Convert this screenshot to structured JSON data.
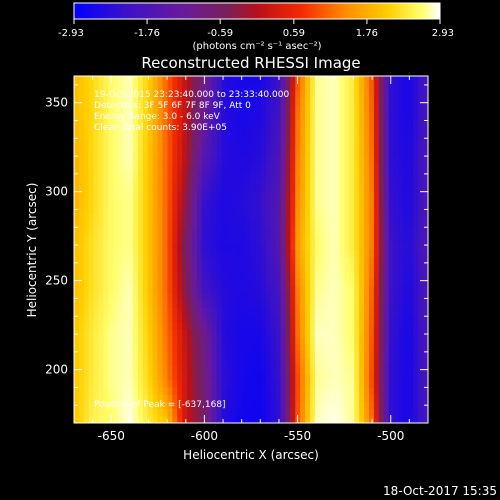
{
  "chart_data": {
    "type": "heatmap",
    "title": "Reconstructed RHESSI Image",
    "xlabel": "Heliocentric X (arcsec)",
    "ylabel": "Heliocentric Y (arcsec)",
    "xlim": [
      -670,
      -480
    ],
    "ylim": [
      170,
      365
    ],
    "xticks": [
      -650,
      -600,
      -550,
      -500
    ],
    "yticks": [
      200,
      250,
      300,
      350
    ],
    "xtick_labels": [
      "-650",
      "-600",
      "-550",
      "-500"
    ],
    "ytick_labels": [
      "200",
      "250",
      "300",
      "350"
    ],
    "colorbar": {
      "range": [
        -2.93,
        2.93
      ],
      "ticks": [
        -2.93,
        -1.76,
        -0.59,
        0.59,
        1.76,
        2.93
      ],
      "tick_labels": [
        "-2.93",
        "-1.76",
        "-0.59",
        "0.59",
        "1.76",
        "2.93"
      ],
      "unit_label": "(photons cm⁻² s⁻¹ asec⁻²)",
      "colormap": "blue-purple-red-orange-yellow-white"
    },
    "annotations": [
      "19-Oct-2015 23:23:40.000 to 23:33:40.000",
      "Detectors: 3F 5F 6F 7F 8F 9F, Att 0",
      "Energy Range: 3.0 - 6.0 keV",
      "Clean     Total counts: 3.90E+05"
    ],
    "peak_label": "Position of Peak = [-637,168]",
    "band_profile": {
      "x": [
        -670,
        -660,
        -650,
        -640,
        -630,
        -620,
        -610,
        -600,
        -590,
        -580,
        -570,
        -560,
        -550,
        -540,
        -530,
        -520,
        -510,
        -500,
        -490,
        -480
      ],
      "y": [
        170,
        195,
        220,
        245,
        270,
        295,
        320,
        345,
        365
      ],
      "values": [
        [
          2.0,
          2.5,
          2.6,
          2.9,
          2.4,
          2.0,
          0.2,
          -0.6,
          -2.4,
          -2.7,
          -2.7,
          -2.3,
          1.0,
          2.8,
          2.9,
          2.7,
          1.2,
          -2.3,
          -2.6,
          -1.8
        ],
        [
          2.0,
          2.4,
          2.7,
          2.8,
          2.2,
          1.3,
          0.2,
          -0.8,
          -2.3,
          -2.6,
          -2.7,
          -2.2,
          0.9,
          2.7,
          2.8,
          2.7,
          0.9,
          -2.3,
          -2.6,
          -1.7
        ],
        [
          2.0,
          2.4,
          2.7,
          2.8,
          2.1,
          1.2,
          0.1,
          -1.0,
          -2.4,
          -2.6,
          -2.6,
          -2.1,
          1.2,
          2.8,
          2.8,
          2.6,
          1.0,
          -2.2,
          -2.6,
          -1.7
        ],
        [
          1.9,
          2.3,
          2.6,
          2.8,
          2.0,
          1.1,
          -0.4,
          -2.0,
          -2.4,
          -2.5,
          -2.4,
          -1.9,
          1.3,
          2.7,
          2.8,
          2.6,
          1.1,
          -2.1,
          -2.5,
          -1.7
        ],
        [
          1.9,
          2.3,
          2.6,
          2.7,
          2.0,
          1.1,
          -0.6,
          -2.3,
          -2.5,
          -2.5,
          -2.3,
          -1.6,
          1.6,
          2.6,
          2.8,
          2.4,
          1.3,
          -2.1,
          -2.4,
          -1.6
        ],
        [
          1.8,
          2.2,
          2.6,
          2.7,
          2.0,
          1.1,
          -0.3,
          -2.2,
          -2.5,
          -2.4,
          -2.2,
          -1.6,
          1.4,
          2.7,
          2.8,
          2.4,
          1.3,
          -2.2,
          -2.5,
          -1.7
        ],
        [
          1.8,
          2.2,
          2.6,
          2.8,
          2.0,
          1.1,
          0.0,
          -1.6,
          -2.4,
          -2.5,
          -2.4,
          -1.8,
          1.3,
          2.7,
          2.8,
          2.4,
          1.2,
          -2.3,
          -2.5,
          -1.7
        ],
        [
          1.9,
          2.2,
          2.6,
          2.8,
          2.1,
          1.1,
          0.1,
          -1.2,
          -2.4,
          -2.6,
          -2.5,
          -2.0,
          1.2,
          2.7,
          2.8,
          2.4,
          1.1,
          -2.3,
          -2.6,
          -1.8
        ],
        [
          1.9,
          2.2,
          2.6,
          2.8,
          2.1,
          1.1,
          0.1,
          -1.0,
          -2.4,
          -2.6,
          -2.6,
          -2.1,
          1.0,
          2.7,
          2.8,
          2.4,
          1.0,
          -2.3,
          -2.6,
          -1.8
        ]
      ]
    }
  },
  "footer": {
    "timestamp": "18-Oct-2017 15:35"
  }
}
